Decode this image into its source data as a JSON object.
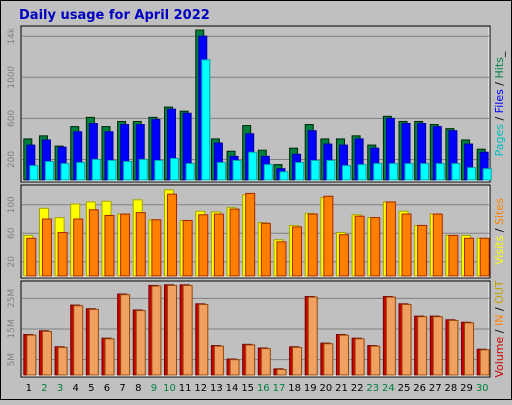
{
  "chart_data": {
    "type": "bar",
    "title": "Daily usage for April 2022",
    "days": [
      "1",
      "2",
      "3",
      "4",
      "5",
      "6",
      "7",
      "8",
      "9",
      "10",
      "11",
      "12",
      "13",
      "14",
      "15",
      "16",
      "17",
      "18",
      "19",
      "20",
      "21",
      "22",
      "23",
      "24",
      "25",
      "26",
      "27",
      "28",
      "29",
      "30"
    ],
    "weekend_days": [
      "2",
      "3",
      "9",
      "10",
      "16",
      "17",
      "23",
      "24",
      "30"
    ],
    "panels": [
      {
        "id": "hits",
        "yticks": [
          "200",
          "600",
          "1000",
          "14k"
        ],
        "ylabel_parts": [
          {
            "text": "Pages",
            "color": "#00c0c0"
          },
          {
            "text": " / ",
            "color": "#000000"
          },
          {
            "text": "Files",
            "color": "#0000ff"
          },
          {
            "text": " / ",
            "color": "#000000"
          },
          {
            "text": "Hits",
            "color": "#008040"
          },
          {
            "text": "_",
            "color": "#000000"
          }
        ],
        "series": [
          {
            "name": "Hits",
            "color": "#008040",
            "values": [
              400,
              430,
              330,
              520,
              610,
              520,
              570,
              570,
              610,
              710,
              670,
              1460,
              400,
              280,
              530,
              290,
              150,
              310,
              540,
              400,
              400,
              430,
              340,
              620,
              570,
              570,
              540,
              500,
              390,
              300
            ]
          },
          {
            "name": "Files",
            "color": "#0000ff",
            "values": [
              340,
              390,
              320,
              470,
              550,
              470,
              540,
              540,
              590,
              690,
              650,
              1400,
              360,
              230,
              450,
              230,
              110,
              250,
              480,
              350,
              340,
              400,
              310,
              600,
              550,
              550,
              520,
              480,
              350,
              270
            ]
          },
          {
            "name": "Pages",
            "color": "#00ffff",
            "values": [
              140,
              180,
              160,
              170,
              200,
              190,
              180,
              200,
              190,
              210,
              160,
              1170,
              170,
              190,
              270,
              150,
              80,
              170,
              190,
              190,
              140,
              150,
              160,
              160,
              160,
              160,
              160,
              160,
              120,
              110
            ]
          }
        ]
      },
      {
        "id": "visits",
        "yticks": [
          "20",
          "60",
          "100"
        ],
        "ylabel_parts": [
          {
            "text": "Visits",
            "color": "#ffff00"
          },
          {
            "text": " / ",
            "color": "#000000"
          },
          {
            "text": "Sites",
            "color": "#ff8000"
          }
        ],
        "series": [
          {
            "name": "Visits",
            "color": "#ffff00",
            "values": [
              57,
              95,
              82,
              101,
              104,
              105,
              87,
              107,
              79,
              121,
              78,
              91,
              90,
              96,
              114,
              75,
              51,
              71,
              88,
              110,
              61,
              86,
              82,
              104,
              91,
              71,
              87,
              57,
              57,
              53
            ]
          },
          {
            "name": "Sites",
            "color": "#ff8000",
            "values": [
              53,
              80,
              61,
              80,
              93,
              85,
              87,
              89,
              79,
              115,
              78,
              86,
              87,
              94,
              116,
              74,
              48,
              69,
              87,
              112,
              58,
              84,
              82,
              104,
              87,
              71,
              87,
              57,
              53,
              53
            ]
          }
        ]
      },
      {
        "id": "volume",
        "yticks": [
          "5M",
          "15M",
          "25M"
        ],
        "ylabel_parts": [
          {
            "text": "Volume",
            "color": "#cc0000"
          },
          {
            "text": " / ",
            "color": "#000000"
          },
          {
            "text": "IN",
            "color": "#ff8000"
          },
          {
            "text": " / ",
            "color": "#000000"
          },
          {
            "text": "OUT",
            "color": "#c0a000"
          }
        ],
        "series": [
          {
            "name": "Volume",
            "color": "#cc0000",
            "values": [
              13.2,
              14.4,
              9.2,
              22.8,
              21.6,
              12.0,
              26.4,
              21.2,
              29.2,
              29.4,
              29.4,
              23.2,
              9.6,
              5.2,
              10.0,
              8.8,
              2.0,
              9.2,
              25.6,
              10.4,
              13.2,
              12.0,
              9.6,
              25.6,
              23.2,
              19.2,
              19.2,
              18.0,
              17.2,
              8.4
            ]
          },
          {
            "name": "IN",
            "color": "#f0a060",
            "values": [
              13.0,
              14.2,
              9.0,
              22.6,
              21.4,
              11.8,
              26.2,
              21.0,
              29.0,
              29.2,
              29.2,
              23.0,
              9.4,
              5.0,
              9.8,
              8.6,
              1.8,
              9.0,
              25.4,
              10.2,
              13.0,
              11.8,
              9.4,
              25.4,
              23.0,
              19.0,
              19.0,
              17.8,
              17.0,
              8.2
            ]
          }
        ]
      }
    ]
  }
}
